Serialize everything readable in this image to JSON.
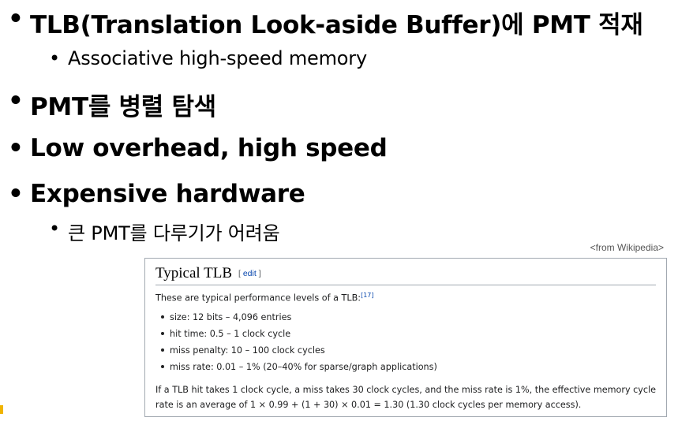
{
  "slide": {
    "bullets": [
      {
        "dot": "•",
        "text": "TLB(Translation Look-aside Buffer)에 PMT 적재",
        "level": 1
      },
      {
        "dot": "•",
        "text": "Associative high-speed memory",
        "level": 2
      },
      {
        "dot": "•",
        "text": "PMT를 병렬 탐색",
        "level": 1
      },
      {
        "dot": "•",
        "text": "Low overhead, high speed",
        "level": 1
      },
      {
        "dot": "•",
        "text": "Expensive hardware",
        "level": 1
      },
      {
        "dot": "•",
        "text": "큰 PMT를 다루기가 어려움",
        "level": 2
      }
    ],
    "source_note": "<from Wikipedia>"
  },
  "wiki": {
    "title": "Typical TLB",
    "edit_open": "[ ",
    "edit_label": "edit",
    "edit_close": " ]",
    "intro": "These are typical performance levels of a TLB:",
    "ref": "[17]",
    "items": [
      "size: 12 bits – 4,096 entries",
      "hit time: 0.5 – 1 clock cycle",
      "miss penalty: 10 – 100 clock cycles",
      "miss rate: 0.01 – 1% (20–40% for sparse/graph applications)"
    ],
    "paragraph": "If a TLB hit takes 1 clock cycle, a miss takes 30 clock cycles, and the miss rate is 1%, the effective memory cycle rate is an average of 1 × 0.99 + (1 + 30) × 0.01 = 1.30 (1.30 clock cycles per memory access)."
  },
  "colors": {
    "link": "#0645ad",
    "border": "#a2a9b1",
    "text": "#202122",
    "slide_mark": "#f0b400"
  }
}
